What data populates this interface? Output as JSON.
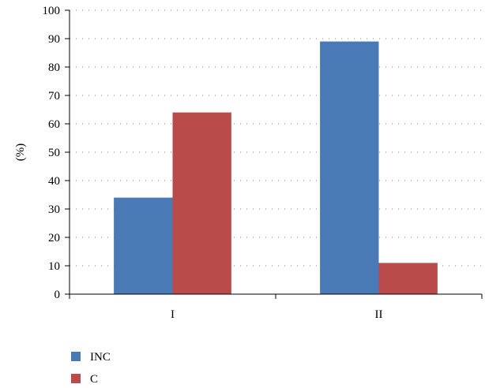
{
  "chart_data": {
    "type": "bar",
    "categories": [
      "I",
      "II"
    ],
    "series": [
      {
        "name": "INC",
        "values": [
          34,
          89
        ],
        "color": "#4a7ab5"
      },
      {
        "name": "C",
        "values": [
          64,
          11
        ],
        "color": "#b94b4b"
      }
    ],
    "ylabel": "(%)",
    "xlabel": "",
    "title": "",
    "ylim": [
      0,
      100
    ],
    "ytick_step": 10,
    "grid": "dotted-horizontal",
    "legend_position": "bottom-left"
  }
}
